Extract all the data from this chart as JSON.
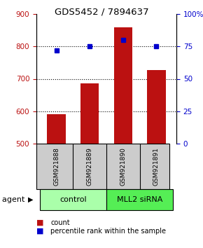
{
  "title": "GDS5452 / 7894637",
  "samples": [
    "GSM921888",
    "GSM921889",
    "GSM921890",
    "GSM921891"
  ],
  "counts": [
    590,
    685,
    860,
    727
  ],
  "percentiles": [
    72,
    75,
    80,
    75
  ],
  "ylim_left": [
    500,
    900
  ],
  "ylim_right": [
    0,
    100
  ],
  "yticks_left": [
    500,
    600,
    700,
    800,
    900
  ],
  "yticks_right": [
    0,
    25,
    50,
    75,
    100
  ],
  "yticklabels_right": [
    "0",
    "25",
    "50",
    "75",
    "100%"
  ],
  "bar_color": "#bb1111",
  "dot_color": "#0000cc",
  "groups": [
    {
      "label": "control",
      "samples": [
        0,
        1
      ],
      "color": "#aaffaa"
    },
    {
      "label": "MLL2 siRNA",
      "samples": [
        2,
        3
      ],
      "color": "#55ee55"
    }
  ],
  "sample_box_color": "#cccccc",
  "agent_label": "agent",
  "legend_items": [
    {
      "label": "count",
      "color": "#bb1111"
    },
    {
      "label": "percentile rank within the sample",
      "color": "#0000cc"
    }
  ]
}
